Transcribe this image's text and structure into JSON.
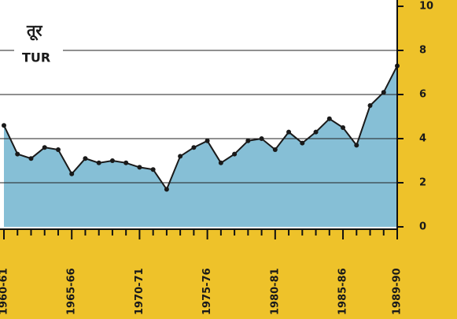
{
  "chart_data": {
    "type": "area",
    "title": "तूर",
    "subtitle": "TUR",
    "categories": [
      "1960-61",
      null,
      null,
      null,
      null,
      "1965-66",
      null,
      null,
      null,
      null,
      "1970-71",
      null,
      null,
      null,
      null,
      "1975-76",
      null,
      null,
      null,
      null,
      "1980-81",
      null,
      null,
      null,
      null,
      "1985-86",
      null,
      null,
      null,
      "1989-90"
    ],
    "series": [
      {
        "name": "TUR",
        "color": "#1a1a1a",
        "fill": "#86bfd6",
        "values": [
          4.6,
          3.3,
          3.1,
          3.6,
          3.5,
          2.4,
          3.1,
          2.9,
          3.0,
          2.9,
          2.7,
          2.6,
          1.7,
          3.2,
          3.6,
          3.9,
          2.9,
          3.3,
          3.9,
          4.0,
          3.5,
          4.3,
          3.8,
          4.3,
          4.9,
          4.5,
          3.7,
          5.5,
          6.1,
          7.3
        ]
      }
    ],
    "ylim": [
      0,
      10
    ],
    "yticks": [
      0,
      2,
      4,
      6,
      8,
      10
    ],
    "grid": true
  }
}
